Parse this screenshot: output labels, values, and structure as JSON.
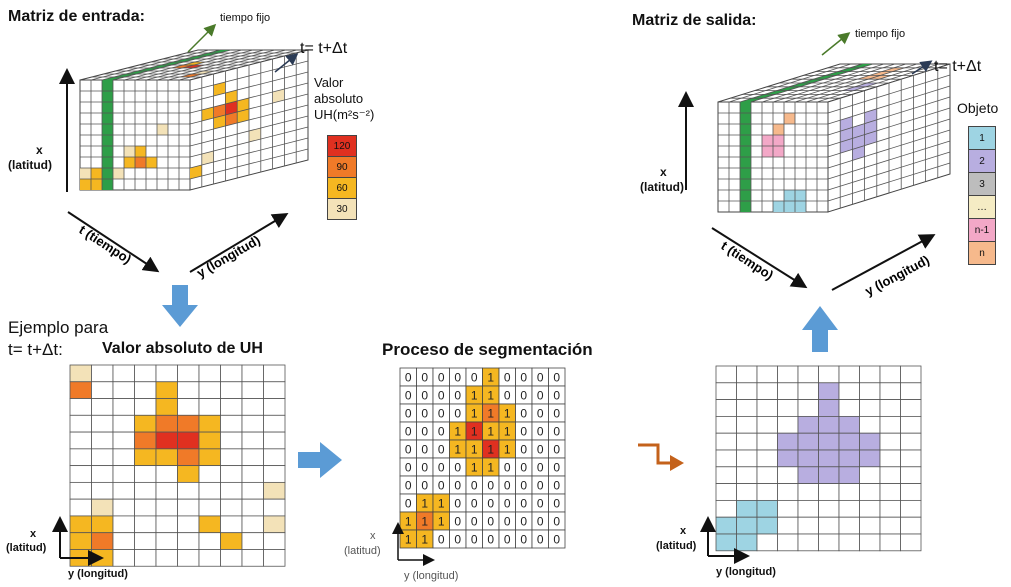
{
  "input_title": "Matriz de entrada:",
  "output_title": "Matriz de salida:",
  "fixed_time": "tiempo fijo",
  "time_step": "t= t+Δt",
  "axis_x": "x",
  "axis_x_sub": "(latitud)",
  "axis_t": "t (tiempo)",
  "axis_y": "y (longitud)",
  "legend_uh": {
    "title_lines": [
      "Valor",
      "absoluto",
      "UH(m²s⁻²)"
    ],
    "items": [
      {
        "label": "120",
        "color": "#e03020"
      },
      {
        "label": "90",
        "color": "#f07a28"
      },
      {
        "label": "60",
        "color": "#f5b721"
      },
      {
        "label": "30",
        "color": "#f3e2b8"
      }
    ]
  },
  "legend_obj": {
    "title": "Objeto",
    "items": [
      {
        "label": "1",
        "color": "#9ed4e3"
      },
      {
        "label": "2",
        "color": "#b8aee0"
      },
      {
        "label": "3",
        "color": "#bdbdbd"
      },
      {
        "label": "…",
        "color": "#f5ecc4"
      },
      {
        "label": "n-1",
        "color": "#f3a8c7"
      },
      {
        "label": "n",
        "color": "#f6b98c"
      }
    ]
  },
  "example_label_line1": "Ejemplo para",
  "example_label_line2": "t= t+Δt:",
  "uh_title": "Valor absoluto de UH",
  "seg_title": "Proceso de segmentación",
  "colors": {
    "red": "#e03020",
    "orange": "#f07a28",
    "yellow": "#f5b721",
    "beige": "#f3e2b8",
    "green": "#2e9e48",
    "blue": "#5b9bd5",
    "purple": "#b8aee0",
    "cyan": "#9ed4e3",
    "pink": "#f3a8c7",
    "peach": "#f6b98c",
    "brown": "#c4621b"
  },
  "uh_grid": [
    "b000000000",
    "o000y00000",
    "0000y00000",
    "000yooy000",
    "000orry000",
    "000yyoy000",
    "00000y0000",
    "000000000b",
    "0b00000000",
    "yy0000y00b",
    "yo00000y00",
    "yy00000000"
  ],
  "seg_grid": [
    "0000010000",
    "0000110000",
    "0000111000",
    "0001211000",
    "0001121000",
    "0000110000",
    "0000000000",
    "0110000000",
    "1110000000",
    "1100000000"
  ],
  "seg_colors": [
    "0000060000",
    "0000660000",
    "0000686000",
    "0006966000",
    "0006696000",
    "0000660000",
    "0000000000",
    "0660000000",
    "6860000000",
    "6600000000"
  ],
  "obj_grid": [
    "0000000000",
    "0000020000",
    "0000020000",
    "0000222000",
    "0002222200",
    "0002222200",
    "0000222000",
    "0000000000",
    "0110000000",
    "1110000000",
    "1100000000"
  ]
}
